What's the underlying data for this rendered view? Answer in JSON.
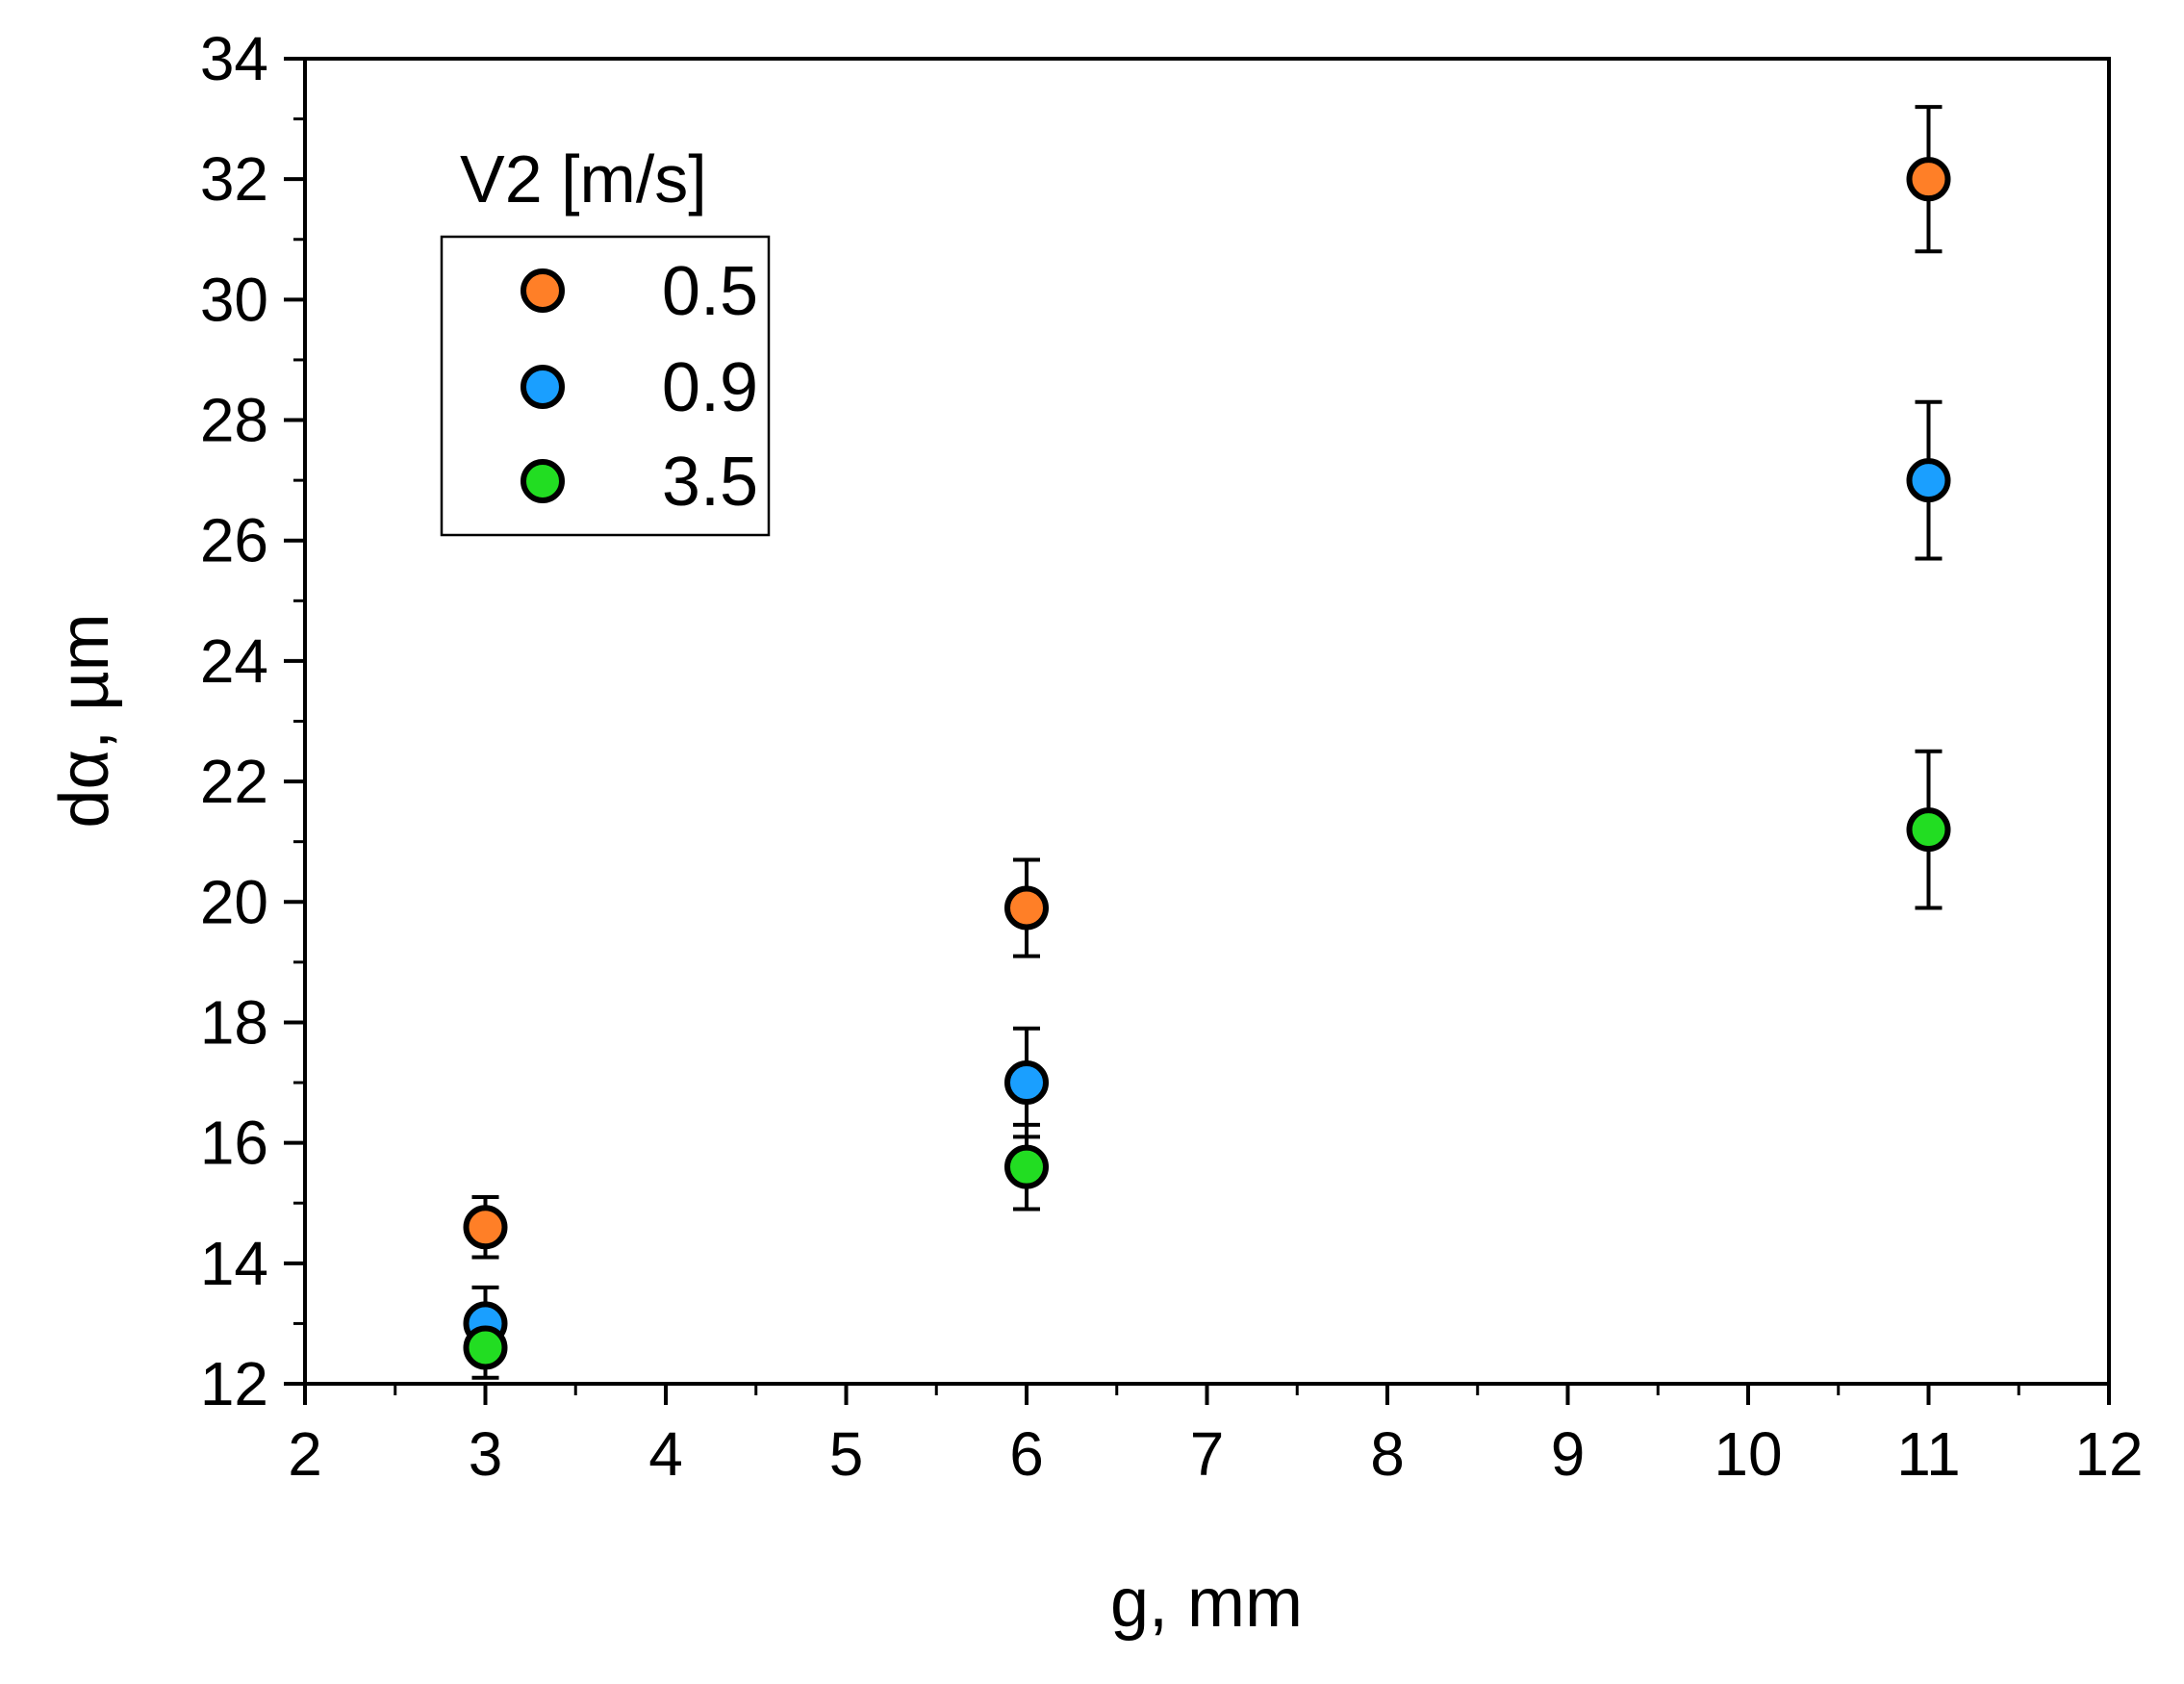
{
  "chart_data": {
    "type": "scatter",
    "title": "",
    "xlabel": "g, mm",
    "ylabel": "dα, µm",
    "xlim": [
      2,
      12
    ],
    "ylim": [
      12,
      34
    ],
    "xticks": [
      2,
      3,
      4,
      5,
      6,
      7,
      8,
      9,
      10,
      11,
      12
    ],
    "yticks": [
      12,
      14,
      16,
      18,
      20,
      22,
      24,
      26,
      28,
      30,
      32,
      34
    ],
    "grid": false,
    "legend": {
      "title": "V2 [m/s]",
      "position": "top-left"
    },
    "series": [
      {
        "name": "0.5",
        "color": "#ff7f27",
        "points": [
          {
            "x": 3,
            "y": 14.6,
            "err": 0.5
          },
          {
            "x": 6,
            "y": 19.9,
            "err": 0.8
          },
          {
            "x": 11,
            "y": 32.0,
            "err": 1.2
          }
        ]
      },
      {
        "name": "0.9",
        "color": "#1a9fff",
        "points": [
          {
            "x": 3,
            "y": 13.0,
            "err": 0.6
          },
          {
            "x": 6,
            "y": 17.0,
            "err": 0.9
          },
          {
            "x": 11,
            "y": 27.0,
            "err": 1.3
          }
        ]
      },
      {
        "name": "3.5",
        "color": "#22dd22",
        "points": [
          {
            "x": 3,
            "y": 12.6,
            "err": 0.5
          },
          {
            "x": 6,
            "y": 15.6,
            "err": 0.7
          },
          {
            "x": 11,
            "y": 21.2,
            "err": 1.3
          }
        ]
      }
    ]
  }
}
